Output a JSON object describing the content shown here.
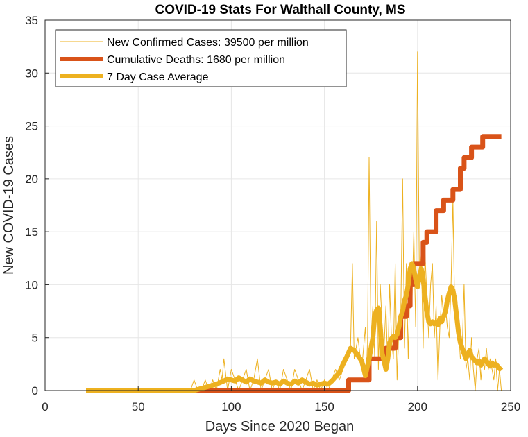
{
  "chart_data": {
    "type": "line",
    "title": "COVID-19 Stats For Walthall County, MS",
    "xlabel": "Days Since 2020 Began",
    "ylabel": "New COVID-19 Cases",
    "xlim": [
      0,
      250
    ],
    "ylim": [
      0,
      35
    ],
    "xticks": [
      "0",
      "50",
      "100",
      "150",
      "200",
      "250"
    ],
    "yticks": [
      "0",
      "5",
      "10",
      "15",
      "20",
      "25",
      "30",
      "35"
    ],
    "grid": true,
    "legend_position": "top-left",
    "series": [
      {
        "name": "New Confirmed Cases: 39500 per million",
        "color": "#EDB120",
        "style": "thin",
        "points": [
          [
            22,
            0
          ],
          [
            78,
            0
          ],
          [
            80,
            1
          ],
          [
            82,
            0
          ],
          [
            84,
            0
          ],
          [
            86,
            1
          ],
          [
            88,
            0
          ],
          [
            90,
            1
          ],
          [
            92,
            0
          ],
          [
            94,
            2
          ],
          [
            95,
            1
          ],
          [
            96,
            3
          ],
          [
            98,
            0
          ],
          [
            100,
            2
          ],
          [
            102,
            1
          ],
          [
            104,
            0
          ],
          [
            106,
            1
          ],
          [
            108,
            2
          ],
          [
            110,
            0
          ],
          [
            112,
            1
          ],
          [
            114,
            3
          ],
          [
            116,
            0
          ],
          [
            118,
            1
          ],
          [
            120,
            2
          ],
          [
            122,
            0
          ],
          [
            124,
            1
          ],
          [
            126,
            0
          ],
          [
            128,
            2
          ],
          [
            130,
            1
          ],
          [
            132,
            0
          ],
          [
            134,
            2
          ],
          [
            136,
            1
          ],
          [
            138,
            0
          ],
          [
            140,
            1
          ],
          [
            142,
            2
          ],
          [
            144,
            0
          ],
          [
            146,
            1
          ],
          [
            148,
            0
          ],
          [
            150,
            1
          ],
          [
            152,
            0
          ],
          [
            154,
            1
          ],
          [
            156,
            2
          ],
          [
            158,
            1
          ],
          [
            160,
            2
          ],
          [
            162,
            3
          ],
          [
            164,
            4
          ],
          [
            165,
            12
          ],
          [
            166,
            3
          ],
          [
            168,
            5
          ],
          [
            170,
            2
          ],
          [
            172,
            6
          ],
          [
            173,
            1
          ],
          [
            174,
            22
          ],
          [
            175,
            5
          ],
          [
            176,
            8
          ],
          [
            177,
            3
          ],
          [
            178,
            16
          ],
          [
            179,
            2
          ],
          [
            180,
            10
          ],
          [
            181,
            6
          ],
          [
            182,
            4
          ],
          [
            183,
            8
          ],
          [
            184,
            2
          ],
          [
            185,
            10
          ],
          [
            186,
            5
          ],
          [
            187,
            3
          ],
          [
            188,
            12
          ],
          [
            189,
            1
          ],
          [
            190,
            6
          ],
          [
            191,
            7
          ],
          [
            192,
            20
          ],
          [
            193,
            4
          ],
          [
            194,
            12
          ],
          [
            195,
            3
          ],
          [
            196,
            11
          ],
          [
            197,
            8
          ],
          [
            198,
            15
          ],
          [
            199,
            6
          ],
          [
            200,
            32
          ],
          [
            201,
            10
          ],
          [
            202,
            13
          ],
          [
            203,
            4
          ],
          [
            204,
            13
          ],
          [
            205,
            9
          ],
          [
            206,
            5
          ],
          [
            207,
            10
          ],
          [
            208,
            12
          ],
          [
            209,
            5
          ],
          [
            210,
            8
          ],
          [
            211,
            1
          ],
          [
            212,
            6
          ],
          [
            213,
            9
          ],
          [
            214,
            7
          ],
          [
            215,
            8
          ],
          [
            216,
            6
          ],
          [
            217,
            5
          ],
          [
            218,
            10
          ],
          [
            219,
            18
          ],
          [
            220,
            7
          ],
          [
            221,
            9
          ],
          [
            222,
            6
          ],
          [
            223,
            3
          ],
          [
            224,
            4
          ],
          [
            225,
            10
          ],
          [
            226,
            2
          ],
          [
            227,
            3
          ],
          [
            228,
            1
          ],
          [
            229,
            5
          ],
          [
            230,
            2
          ],
          [
            231,
            0
          ],
          [
            232,
            3
          ],
          [
            233,
            4
          ],
          [
            234,
            1
          ],
          [
            235,
            3
          ],
          [
            236,
            2
          ],
          [
            237,
            4
          ],
          [
            238,
            2
          ],
          [
            239,
            3
          ],
          [
            240,
            2
          ],
          [
            241,
            1
          ],
          [
            242,
            3
          ],
          [
            243,
            0
          ],
          [
            244,
            2
          ],
          [
            245,
            0
          ]
        ]
      },
      {
        "name": "Cumulative Deaths: 1680 per million",
        "color": "#D95319",
        "style": "thick",
        "points": [
          [
            22,
            0
          ],
          [
            163,
            0
          ],
          [
            163,
            1
          ],
          [
            174,
            1
          ],
          [
            174,
            3
          ],
          [
            183,
            3
          ],
          [
            183,
            4
          ],
          [
            188,
            4
          ],
          [
            188,
            5
          ],
          [
            191,
            5
          ],
          [
            191,
            7
          ],
          [
            194,
            7
          ],
          [
            194,
            8
          ],
          [
            196,
            8
          ],
          [
            196,
            10
          ],
          [
            198,
            10
          ],
          [
            198,
            12
          ],
          [
            203,
            12
          ],
          [
            203,
            14
          ],
          [
            205,
            14
          ],
          [
            205,
            15
          ],
          [
            210,
            15
          ],
          [
            210,
            17
          ],
          [
            214,
            17
          ],
          [
            214,
            18
          ],
          [
            219,
            18
          ],
          [
            219,
            19
          ],
          [
            223,
            19
          ],
          [
            223,
            21
          ],
          [
            225,
            21
          ],
          [
            225,
            22
          ],
          [
            229,
            22
          ],
          [
            229,
            23
          ],
          [
            235,
            23
          ],
          [
            235,
            24
          ],
          [
            245,
            24
          ]
        ]
      },
      {
        "name": "7 Day Case Average",
        "color": "#EDB120",
        "style": "thick",
        "points": [
          [
            22,
            0
          ],
          [
            80,
            0
          ],
          [
            84,
            0.2
          ],
          [
            88,
            0.4
          ],
          [
            92,
            0.6
          ],
          [
            96,
            0.9
          ],
          [
            98,
            1.1
          ],
          [
            100,
            1.0
          ],
          [
            102,
            0.9
          ],
          [
            104,
            1.2
          ],
          [
            106,
            1.0
          ],
          [
            108,
            0.8
          ],
          [
            110,
            1.1
          ],
          [
            112,
            0.9
          ],
          [
            114,
            0.8
          ],
          [
            116,
            0.7
          ],
          [
            118,
            1.0
          ],
          [
            120,
            0.8
          ],
          [
            122,
            0.7
          ],
          [
            124,
            0.8
          ],
          [
            126,
            0.6
          ],
          [
            128,
            0.9
          ],
          [
            130,
            0.7
          ],
          [
            132,
            0.6
          ],
          [
            134,
            0.9
          ],
          [
            136,
            0.7
          ],
          [
            138,
            1.0
          ],
          [
            140,
            0.8
          ],
          [
            142,
            0.6
          ],
          [
            144,
            0.7
          ],
          [
            146,
            0.5
          ],
          [
            148,
            0.6
          ],
          [
            150,
            0.7
          ],
          [
            152,
            0.6
          ],
          [
            154,
            0.9
          ],
          [
            156,
            1.3
          ],
          [
            158,
            1.7
          ],
          [
            160,
            2.5
          ],
          [
            162,
            3.2
          ],
          [
            164,
            4.0
          ],
          [
            166,
            3.8
          ],
          [
            168,
            3.3
          ],
          [
            170,
            2.8
          ],
          [
            172,
            1.4
          ],
          [
            174,
            3.0
          ],
          [
            176,
            5.0
          ],
          [
            177,
            7.0
          ],
          [
            178,
            7.6
          ],
          [
            179,
            7.8
          ],
          [
            180,
            6.0
          ],
          [
            181,
            3.5
          ],
          [
            182,
            2.8
          ],
          [
            183,
            2.0
          ],
          [
            184,
            3.0
          ],
          [
            185,
            4.5
          ],
          [
            186,
            4.9
          ],
          [
            187,
            5.1
          ],
          [
            188,
            5.0
          ],
          [
            189,
            5.3
          ],
          [
            190,
            6.0
          ],
          [
            191,
            7.0
          ],
          [
            192,
            7.5
          ],
          [
            193,
            8.5
          ],
          [
            194,
            9.0
          ],
          [
            195,
            10.0
          ],
          [
            196,
            11.5
          ],
          [
            197,
            12.0
          ],
          [
            198,
            11.5
          ],
          [
            199,
            10.5
          ],
          [
            200,
            9.8
          ],
          [
            201,
            10.8
          ],
          [
            202,
            11.5
          ],
          [
            203,
            10.5
          ],
          [
            204,
            9.0
          ],
          [
            205,
            7.5
          ],
          [
            206,
            6.5
          ],
          [
            207,
            6.3
          ],
          [
            208,
            6.5
          ],
          [
            209,
            6.3
          ],
          [
            210,
            6.4
          ],
          [
            211,
            6.2
          ],
          [
            212,
            6.8
          ],
          [
            213,
            6.5
          ],
          [
            214,
            7.0
          ],
          [
            215,
            7.5
          ],
          [
            216,
            8.5
          ],
          [
            217,
            9.2
          ],
          [
            218,
            9.8
          ],
          [
            219,
            9.5
          ],
          [
            220,
            8.5
          ],
          [
            221,
            7.0
          ],
          [
            222,
            5.5
          ],
          [
            223,
            4.5
          ],
          [
            224,
            4.0
          ],
          [
            225,
            3.5
          ],
          [
            226,
            3.0
          ],
          [
            227,
            3.5
          ],
          [
            228,
            3.8
          ],
          [
            229,
            3.2
          ],
          [
            230,
            3.0
          ],
          [
            231,
            2.8
          ],
          [
            232,
            2.6
          ],
          [
            233,
            2.8
          ],
          [
            234,
            2.4
          ],
          [
            235,
            2.7
          ],
          [
            236,
            3.0
          ],
          [
            237,
            2.8
          ],
          [
            238,
            2.5
          ],
          [
            239,
            2.3
          ],
          [
            240,
            2.6
          ],
          [
            241,
            2.4
          ],
          [
            242,
            2.5
          ],
          [
            243,
            2.3
          ],
          [
            244,
            2.1
          ],
          [
            245,
            1.9
          ]
        ]
      }
    ]
  }
}
